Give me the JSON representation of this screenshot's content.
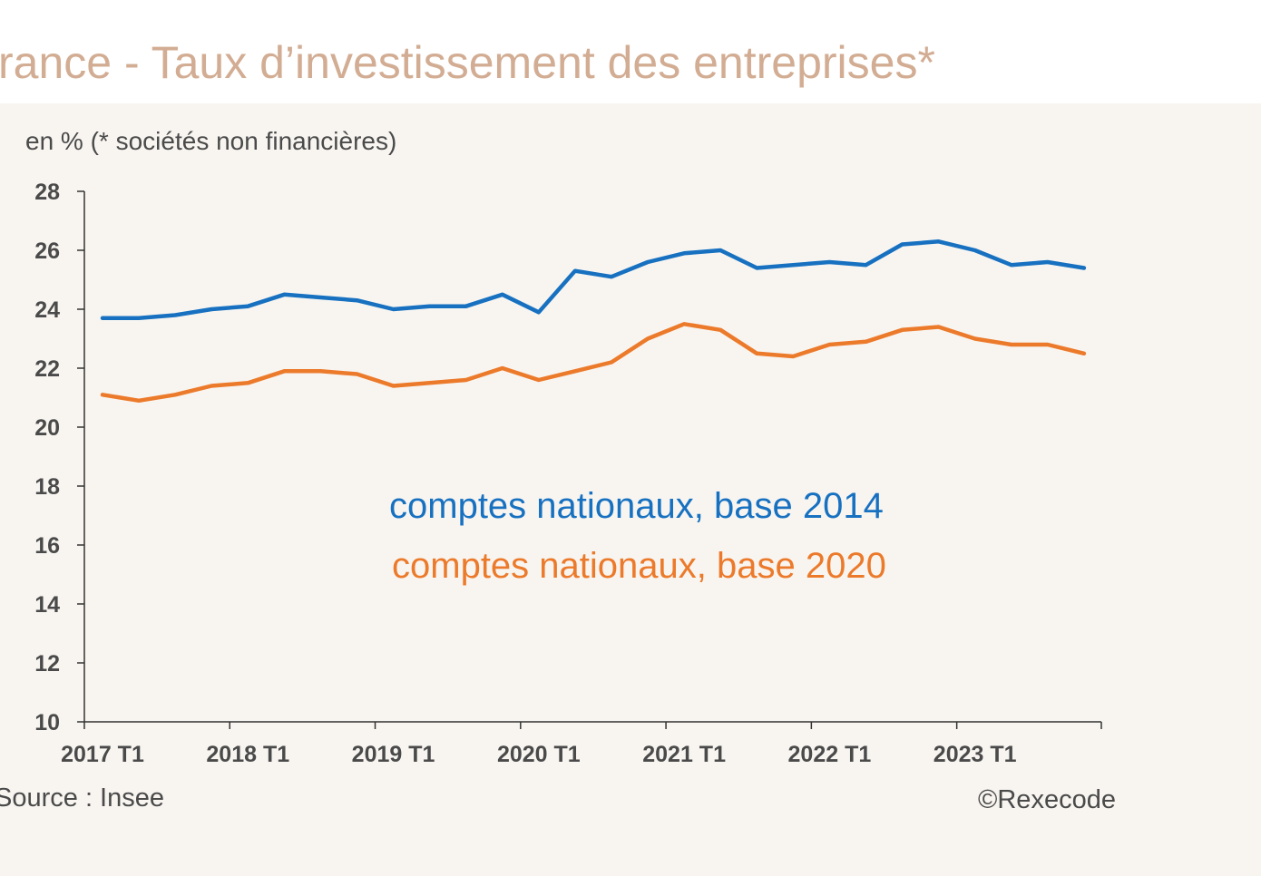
{
  "title": "rance - Taux d’investissement des entreprises*",
  "unit_note": "en % (* sociétés non financières)",
  "source": "Source : Insee",
  "copyright": "©Rexecode",
  "colors": {
    "series_a": "#1771c0",
    "series_b": "#ec7a2b",
    "title": "#d2ad93",
    "background": "#f8f5f1"
  },
  "chart_data": {
    "type": "line",
    "title": "rance - Taux d’investissement des entreprises*",
    "ylabel": "en % (* sociétés non financières)",
    "xlabel": "",
    "ylim": [
      10,
      28
    ],
    "yticks": [
      "10",
      "12",
      "14",
      "16",
      "18",
      "20",
      "22",
      "24",
      "26",
      "28"
    ],
    "xtick_labels": [
      "2017 T1",
      "2018 T1",
      "2019 T1",
      "2020 T1",
      "2021 T1",
      "2022 T1",
      "2023 T1"
    ],
    "x": [
      "2017 T1",
      "2017 T2",
      "2017 T3",
      "2017 T4",
      "2018 T1",
      "2018 T2",
      "2018 T3",
      "2018 T4",
      "2019 T1",
      "2019 T2",
      "2019 T3",
      "2019 T4",
      "2020 T1",
      "2020 T2",
      "2020 T3",
      "2020 T4",
      "2021 T1",
      "2021 T2",
      "2021 T3",
      "2021 T4",
      "2022 T1",
      "2022 T2",
      "2022 T3",
      "2022 T4",
      "2023 T1",
      "2023 T2",
      "2023 T3",
      "2023 T4"
    ],
    "grid": false,
    "legend": "inline labels",
    "series": [
      {
        "name": "comptes nationaux, base 2014",
        "color": "#1771c0",
        "values": [
          23.7,
          23.7,
          23.8,
          24.0,
          24.1,
          24.5,
          24.4,
          24.3,
          24.0,
          24.1,
          24.1,
          24.5,
          23.9,
          25.3,
          25.1,
          25.6,
          25.9,
          26.0,
          25.4,
          25.5,
          25.6,
          25.5,
          26.2,
          26.3,
          26.0,
          25.5,
          25.6,
          25.4
        ]
      },
      {
        "name": "comptes nationaux, base 2020",
        "color": "#ec7a2b",
        "values": [
          21.1,
          20.9,
          21.1,
          21.4,
          21.5,
          21.9,
          21.9,
          21.8,
          21.4,
          21.5,
          21.6,
          22.0,
          21.6,
          21.9,
          22.2,
          23.0,
          23.5,
          23.3,
          22.5,
          22.4,
          22.8,
          22.9,
          23.3,
          23.4,
          23.0,
          22.8,
          22.8,
          22.5
        ]
      }
    ]
  }
}
